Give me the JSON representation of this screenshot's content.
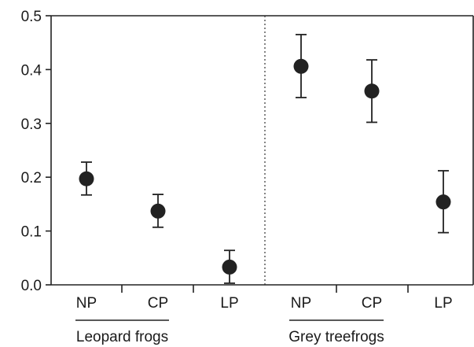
{
  "chart_data": {
    "type": "scatter",
    "title": "",
    "xlabel": "",
    "ylabel": "",
    "ylim": [
      0.0,
      0.5
    ],
    "yticks": [
      "0.0",
      "0.1",
      "0.2",
      "0.3",
      "0.4",
      "0.5"
    ],
    "grid": false,
    "legend": "none",
    "error_bars": true,
    "divider": "dotted vertical line between groups",
    "marker_color": "#222222",
    "groups": [
      {
        "label": "Leopard frogs",
        "categories": [
          "NP",
          "CP",
          "LP"
        ],
        "values": [
          0.197,
          0.137,
          0.033
        ],
        "lower": [
          0.167,
          0.107,
          0.003
        ],
        "upper": [
          0.228,
          0.168,
          0.064
        ]
      },
      {
        "label": "Grey treefrogs",
        "categories": [
          "NP",
          "CP",
          "LP"
        ],
        "values": [
          0.406,
          0.36,
          0.154
        ],
        "lower": [
          0.348,
          0.302,
          0.097
        ],
        "upper": [
          0.465,
          0.418,
          0.212
        ]
      }
    ]
  }
}
